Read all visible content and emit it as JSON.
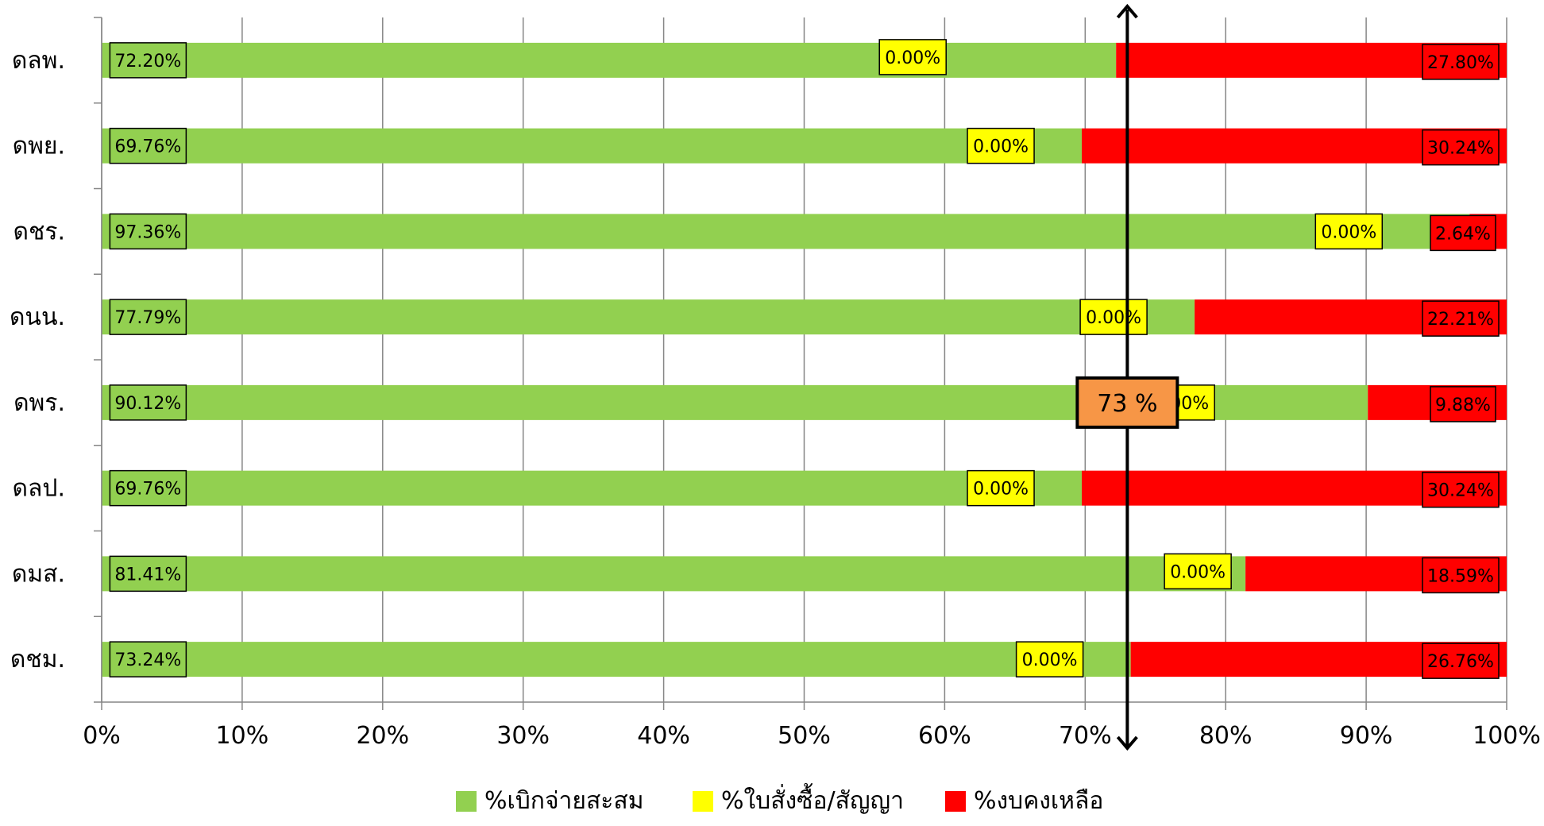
{
  "chart_data": {
    "type": "bar",
    "orientation": "horizontal",
    "stacked": "percent",
    "categories": [
      "ดลพ.",
      "ดพย.",
      "ดชร.",
      "ดนน.",
      "ดพร.",
      "ดลป.",
      "ดมส.",
      "ดชม."
    ],
    "series": [
      {
        "name": "%เบิกจ่ายสะสม",
        "color": "#92D050",
        "values": [
          72.2,
          69.76,
          97.36,
          77.79,
          90.12,
          69.76,
          81.41,
          73.24
        ],
        "labels": [
          "72.20%",
          "69.76%",
          "97.36%",
          "77.79%",
          "90.12%",
          "69.76%",
          "81.41%",
          "73.24%"
        ]
      },
      {
        "name": "%ใบสั่งซื้อ/สัญญา",
        "color": "#FFFF00",
        "values": [
          0,
          0,
          0,
          0,
          0,
          0,
          0,
          0
        ],
        "labels": [
          "0.00%",
          "0.00%",
          "0.00%",
          "0.00%",
          "0.00%",
          "0.00%",
          "0.00%",
          "0.00%"
        ]
      },
      {
        "name": "%งบคงเหลือ",
        "color": "#FF0000",
        "values": [
          27.8,
          30.24,
          2.64,
          22.21,
          9.88,
          30.24,
          18.59,
          26.76
        ],
        "labels": [
          "27.80%",
          "30.24%",
          "2.64%",
          "22.21%",
          "9.88%",
          "30.24%",
          "18.59%",
          "26.76%"
        ]
      }
    ],
    "xlim": [
      0,
      100
    ],
    "x_ticks": [
      "0%",
      "10%",
      "20%",
      "30%",
      "40%",
      "50%",
      "60%",
      "70%",
      "80%",
      "90%",
      "100%"
    ],
    "grid": "vertical",
    "legend": "bottom",
    "target": {
      "value": 73,
      "label": "73 %",
      "box_color": "#F79646"
    }
  }
}
